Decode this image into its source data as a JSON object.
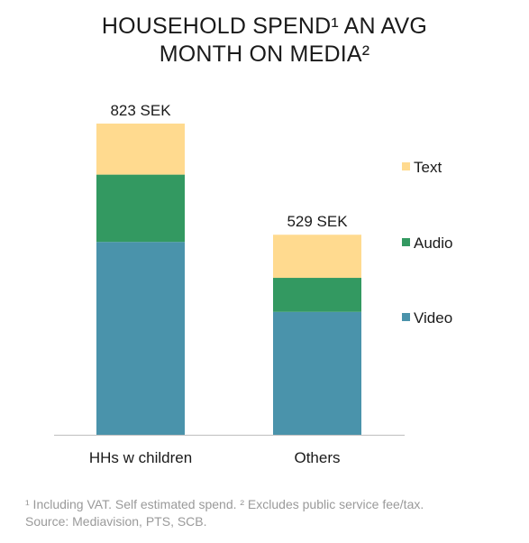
{
  "title_lines": [
    "HOUSEHOLD SPEND¹ AN AVG",
    "MONTH ON MEDIA²"
  ],
  "footnote_lines": [
    "¹ Including VAT. Self estimated spend. ² Excludes public service fee/tax.",
    "Source: Mediavision, PTS, SCB."
  ],
  "colors": {
    "Text": "#FFDA8F",
    "Audio": "#339961",
    "Video": "#4A93AB",
    "axis": "#bfbfbf",
    "label": "#1a1a1a"
  },
  "chart_data": {
    "type": "bar",
    "stacked": true,
    "categories": [
      "HHs w children",
      "Others"
    ],
    "series": [
      {
        "name": "Video",
        "values": [
          510,
          325
        ]
      },
      {
        "name": "Audio",
        "values": [
          178,
          90
        ]
      },
      {
        "name": "Text",
        "values": [
          135,
          114
        ]
      }
    ],
    "totals": [
      "823 SEK",
      "529 SEK"
    ],
    "legend": {
      "placement": "right",
      "order": [
        "Text",
        "Audio",
        "Video"
      ]
    },
    "ylim": [
      0,
      823
    ],
    "grid": false
  }
}
